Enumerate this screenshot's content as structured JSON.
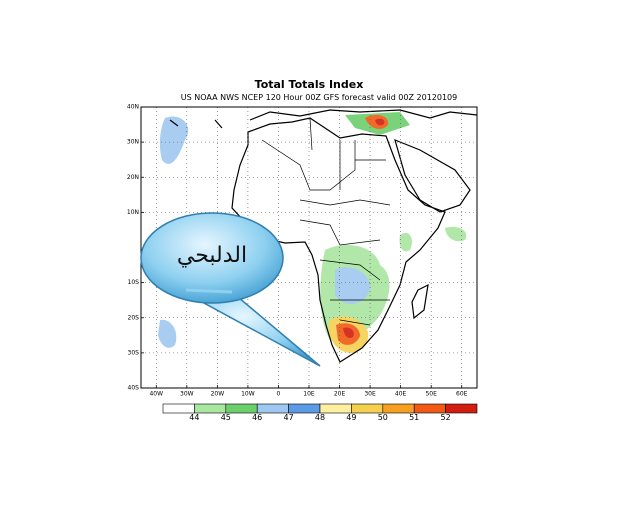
{
  "chart_data": {
    "type": "map",
    "title": "Total Totals Index",
    "subtitle": "US NOAA NWS NCEP 120 Hour 00Z GFS forecast valid 00Z 20120109",
    "xlim": [
      -45,
      65
    ],
    "ylim": [
      -40,
      40
    ],
    "xticks": [
      {
        "value": -40,
        "label": "40W"
      },
      {
        "value": -30,
        "label": "30W"
      },
      {
        "value": -20,
        "label": "20W"
      },
      {
        "value": -10,
        "label": "10W"
      },
      0,
      {
        "value": 10,
        "label": "10E"
      },
      {
        "value": 20,
        "label": "20E"
      },
      {
        "value": 30,
        "label": "30E"
      },
      {
        "value": 40,
        "label": "40E"
      },
      {
        "value": 50,
        "label": "50E"
      },
      {
        "value": 60,
        "label": "60E"
      }
    ],
    "yticks": [
      {
        "value": 40,
        "label": "40N"
      },
      {
        "value": 30,
        "label": "30N"
      },
      {
        "value": 20,
        "label": "20N"
      },
      {
        "value": 10,
        "label": "10N"
      },
      {
        "value": -10,
        "label": "10S"
      },
      {
        "value": -20,
        "label": "20S"
      },
      {
        "value": -30,
        "label": "30S"
      },
      {
        "value": -40,
        "label": "40S"
      }
    ],
    "grid": true,
    "colorbar": {
      "levels": [
        44,
        45,
        46,
        47,
        48,
        49,
        50,
        51,
        52
      ],
      "colors": [
        "#ffffff",
        "#a9e6a0",
        "#6ccf6c",
        "#9fc8f0",
        "#5b9be6",
        "#fff0a0",
        "#f5d050",
        "#f5a020",
        "#f05a14",
        "#d21e10"
      ]
    }
  },
  "callout": {
    "text": "الدلبحي"
  }
}
